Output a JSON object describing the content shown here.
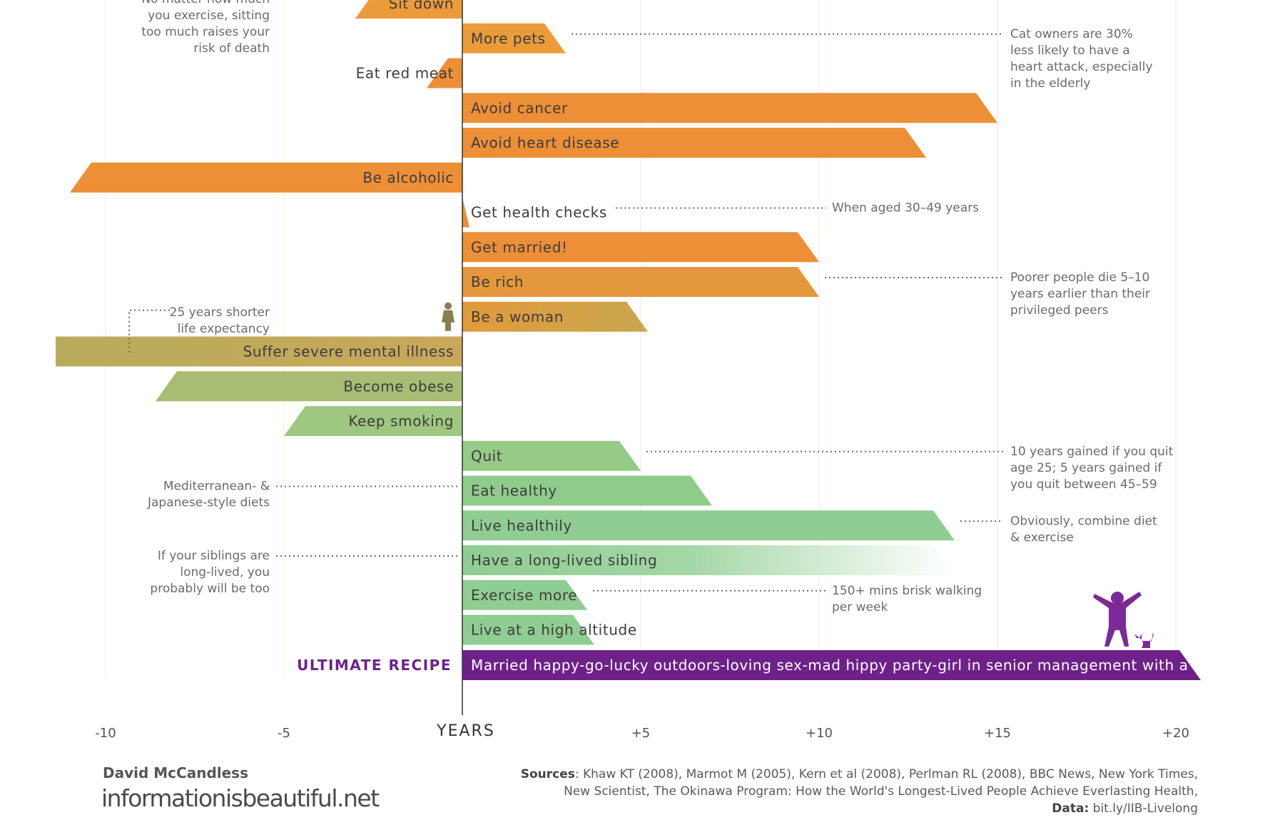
{
  "chart_data": {
    "type": "bar",
    "xlabel": "YEARS",
    "xlim": [
      -10,
      20
    ],
    "ticks": [
      {
        "value": -10,
        "label": "-10"
      },
      {
        "value": -5,
        "label": "-5"
      },
      {
        "value": 5,
        "label": "+5"
      },
      {
        "value": 10,
        "label": "+10"
      },
      {
        "value": 15,
        "label": "+15"
      },
      {
        "value": 20,
        "label": "+20"
      }
    ],
    "bars": [
      {
        "label": "Sit down",
        "value": -3,
        "color": "#ec9b3b"
      },
      {
        "label": "More pets",
        "value": 2.9,
        "color": "#ec9b3b"
      },
      {
        "label": "Eat red meat",
        "value": -1,
        "color": "#ec8f37"
      },
      {
        "label": "Avoid cancer",
        "value": 15,
        "color": "#ec8f37"
      },
      {
        "label": "Avoid heart disease",
        "value": 13,
        "color": "#ec8f37"
      },
      {
        "label": "Be alcoholic",
        "value": -11,
        "color": "#ec8f37"
      },
      {
        "label": "Get health checks",
        "value": 0.2,
        "color": "#ec8f37"
      },
      {
        "label": "Get married!",
        "value": 10,
        "color": "#ec8f37"
      },
      {
        "label": "Be rich",
        "value": 10,
        "color": "#e4973b"
      },
      {
        "label": "Be a woman",
        "value": 5.2,
        "color": "#d8a548"
      },
      {
        "label": "Suffer severe mental illness",
        "value": -11.4,
        "color": "#c4ac5a"
      },
      {
        "label": "Become obese",
        "value": -8.6,
        "color": "#a8bc74"
      },
      {
        "label": "Keep smoking",
        "value": -5,
        "color": "#9ec77f"
      },
      {
        "label": "Quit",
        "value": 5,
        "color": "#95ca87"
      },
      {
        "label": "Eat healthy",
        "value": 7,
        "color": "#8fcc8c"
      },
      {
        "label": "Live healthily",
        "value": 13.8,
        "color": "#8fcd92"
      },
      {
        "label": "Have a long-lived sibling",
        "value": 13.8,
        "color": "#8fcd92",
        "fade": true
      },
      {
        "label": "Exercise more",
        "value": 3.5,
        "color": "#8fcd92"
      },
      {
        "label": "Live at a high altitude",
        "value": 3.7,
        "color": "#8fcd92"
      }
    ],
    "ultimate": {
      "label": "ULTIMATE RECIPE",
      "text": "Married happy-go-lucky outdoors-loving sex-mad hippy party-girl in senior management with a cat",
      "value": 20.7,
      "color": "#6e2189"
    },
    "annotations": [
      {
        "bar": "Sit down",
        "side": "left",
        "lines": [
          "No matter how much",
          "you exercise, sitting",
          "too much raises your",
          "risk of death"
        ]
      },
      {
        "bar": "More pets",
        "side": "right",
        "lines": [
          "Cat owners are 30%",
          "less likely to have a",
          "heart attack, especially",
          "in the elderly"
        ]
      },
      {
        "bar": "Get health checks",
        "side": "mid",
        "lines": [
          "When aged 30–49 years"
        ]
      },
      {
        "bar": "Be rich",
        "side": "right",
        "lines": [
          "Poorer people die 5–10",
          "years earlier than their",
          "privileged peers"
        ]
      },
      {
        "bar": "Be a woman",
        "side": "left",
        "lines": [
          "25 years shorter",
          "life expectancy"
        ]
      },
      {
        "bar": "Quit",
        "side": "right",
        "lines": [
          "10 years gained if you quit",
          "age 25; 5 years gained if",
          "you quit between 45–59"
        ]
      },
      {
        "bar": "Eat healthy",
        "side": "left",
        "lines": [
          "Mediterranean- &",
          "Japanese-style diets"
        ]
      },
      {
        "bar": "Live healthily",
        "side": "right",
        "lines": [
          "Obviously, combine diet",
          "& exercise"
        ]
      },
      {
        "bar": "Have a long-lived sibling",
        "side": "left",
        "lines": [
          "If your siblings are",
          "long-lived, you",
          "probably will be too"
        ]
      },
      {
        "bar": "Exercise more",
        "side": "mid",
        "lines": [
          "150+ mins brisk walking",
          "per week"
        ]
      }
    ]
  },
  "footer": {
    "author": "David McCandless",
    "site": "informationisbeautiful.net",
    "sources_label": "Sources",
    "sources_text": ": Khaw KT (2008), Marmot M (2005), Kern et al (2008), Perlman RL (2008), BBC News, New York Times,",
    "sources_text_2": "New Scientist, The Okinawa Program: How the World's Longest-Lived People Achieve Everlasting Health,",
    "data_label": "Data:",
    "data_link": "bit.ly/IIB-Livelong"
  },
  "icons": {
    "woman": "woman-silhouette-icon",
    "girl_with_cat": "girl-with-cat-icon"
  }
}
